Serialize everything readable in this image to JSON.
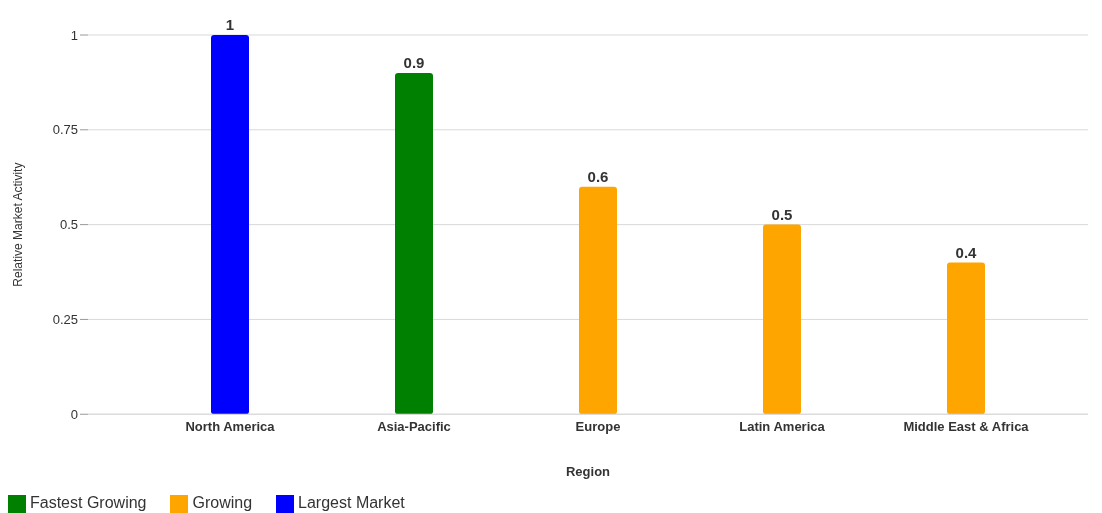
{
  "chart_data": {
    "type": "bar",
    "xlabel": "Region",
    "ylabel": "Relative Market Activity",
    "categories": [
      "North America",
      "Asia-Pacific",
      "Europe",
      "Latin America",
      "Middle East & Africa"
    ],
    "series": [
      {
        "name": "Largest Market",
        "color": "#0000ff",
        "values": [
          1,
          null,
          null,
          null,
          null
        ]
      },
      {
        "name": "Fastest Growing",
        "color": "#008000",
        "values": [
          null,
          0.9,
          null,
          null,
          null
        ]
      },
      {
        "name": "Growing",
        "color": "#ffa500",
        "values": [
          null,
          null,
          0.6,
          0.5,
          0.4
        ]
      }
    ],
    "stacked": true,
    "ylim": [
      0,
      1
    ],
    "yticks": [
      0,
      0.25,
      0.5,
      0.75,
      1
    ],
    "grid": "y",
    "data_labels": true,
    "legend": "bottom left"
  }
}
